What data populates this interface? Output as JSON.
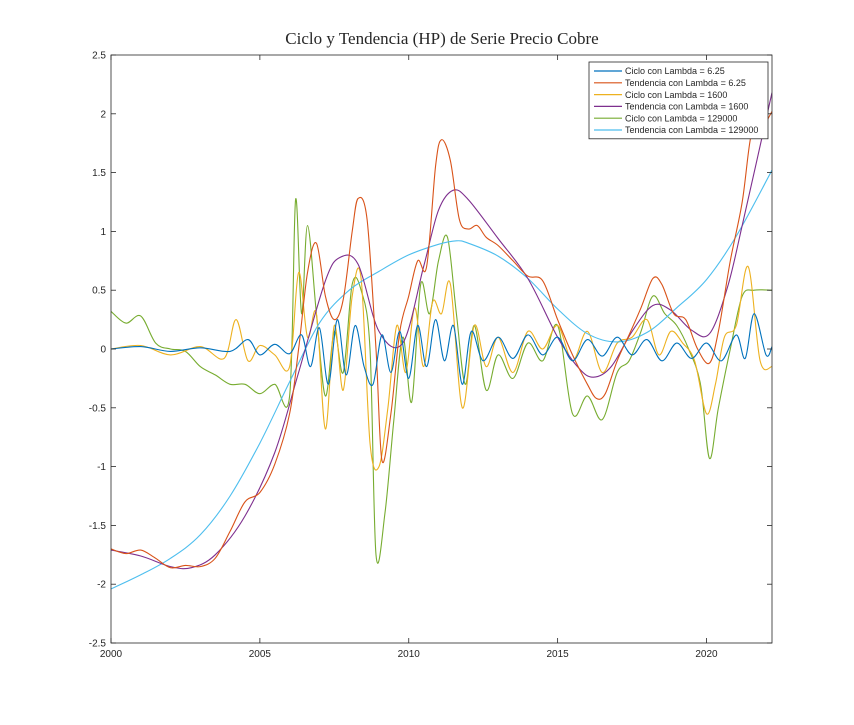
{
  "chart_data": {
    "type": "line",
    "title": "Ciclo y Tendencia (HP) de Serie Precio Cobre",
    "xlabel": "",
    "ylabel": "",
    "xlim": [
      2000,
      2022.2
    ],
    "ylim": [
      -2.5,
      2.5
    ],
    "xticks": [
      "2000",
      "2005",
      "2010",
      "2015",
      "2020"
    ],
    "yticks": [
      "-2.5",
      "-2",
      "-1.5",
      "-1",
      "-0.5",
      "0",
      "0.5",
      "1",
      "1.5",
      "2",
      "2.5"
    ],
    "grid": false,
    "legend_position": "top-right",
    "series": [
      {
        "name": "Tendencia con Lambda = 129000",
        "color": "#4DBEEE",
        "x": [
          2000,
          2001,
          2002,
          2003,
          2004,
          2005,
          2006,
          2007,
          2008,
          2009,
          2010,
          2011,
          2011.6,
          2012,
          2013,
          2014,
          2015,
          2016,
          2017,
          2018,
          2019,
          2020,
          2021,
          2022.2
        ],
        "y": [
          -2.04,
          -1.92,
          -1.78,
          -1.58,
          -1.25,
          -0.8,
          -0.28,
          0.22,
          0.5,
          0.66,
          0.8,
          0.89,
          0.92,
          0.9,
          0.79,
          0.6,
          0.34,
          0.13,
          0.06,
          0.14,
          0.35,
          0.59,
          0.96,
          1.52
        ]
      },
      {
        "name": "Tendencia con Lambda = 1600",
        "color": "#7E2F8E",
        "x": [
          2000,
          2001,
          2002,
          2002.7,
          2003.5,
          2004.5,
          2005.5,
          2006.3,
          2007.2,
          2007.7,
          2008.3,
          2009,
          2009.8,
          2010.5,
          2011,
          2011.5,
          2012,
          2013,
          2014,
          2015,
          2015.7,
          2016.2,
          2016.8,
          2017.5,
          2018.2,
          2018.8,
          2019.5,
          2020.1,
          2020.7,
          2021.2,
          2022.2
        ],
        "y": [
          -1.71,
          -1.76,
          -1.85,
          -1.86,
          -1.75,
          -1.42,
          -0.88,
          -0.2,
          0.58,
          0.78,
          0.72,
          0.15,
          0.05,
          0.7,
          1.18,
          1.35,
          1.27,
          0.94,
          0.6,
          0.1,
          -0.16,
          -0.24,
          -0.15,
          0.15,
          0.37,
          0.33,
          0.16,
          0.13,
          0.52,
          1.05,
          2.18
        ]
      },
      {
        "name": "Tendencia con Lambda = 6.25",
        "color": "#D95319",
        "x": [
          2000,
          2000.5,
          2001,
          2001.5,
          2002,
          2002.5,
          2003,
          2003.5,
          2004,
          2004.5,
          2005,
          2005.5,
          2006,
          2006.3,
          2006.6,
          2006.9,
          2007.2,
          2007.5,
          2007.8,
          2008.1,
          2008.3,
          2008.6,
          2008.9,
          2009.1,
          2009.4,
          2009.7,
          2010,
          2010.3,
          2010.6,
          2010.9,
          2011.1,
          2011.4,
          2011.7,
          2012,
          2012.3,
          2012.6,
          2013,
          2013.5,
          2014,
          2014.5,
          2015,
          2015.5,
          2016,
          2016.3,
          2016.6,
          2017,
          2017.4,
          2017.8,
          2018.2,
          2018.5,
          2018.9,
          2019.3,
          2019.7,
          2020.1,
          2020.4,
          2020.8,
          2021.2,
          2021.5,
          2021.8,
          2022.2
        ],
        "y": [
          -1.7,
          -1.74,
          -1.71,
          -1.78,
          -1.86,
          -1.84,
          -1.85,
          -1.78,
          -1.55,
          -1.3,
          -1.22,
          -0.98,
          -0.55,
          0.0,
          0.65,
          0.9,
          0.45,
          0.25,
          0.42,
          1.0,
          1.28,
          1.1,
          0.0,
          -0.95,
          -0.55,
          0.15,
          0.45,
          0.75,
          0.7,
          1.55,
          1.78,
          1.6,
          1.1,
          1.02,
          1.05,
          0.95,
          0.88,
          0.75,
          0.62,
          0.58,
          0.25,
          -0.05,
          -0.3,
          -0.42,
          -0.38,
          -0.1,
          0.12,
          0.35,
          0.6,
          0.55,
          0.3,
          0.25,
          0.0,
          -0.12,
          0.15,
          0.75,
          1.25,
          1.82,
          1.85,
          2.02
        ]
      }
    ],
    "cycle_series": [
      {
        "name": "Ciclo con Lambda = 6.25",
        "color": "#0072BD",
        "x": [
          2000,
          2001,
          2002,
          2003,
          2004,
          2004.6,
          2005,
          2005.5,
          2006,
          2006.4,
          2006.7,
          2007,
          2007.3,
          2007.6,
          2007.9,
          2008.2,
          2008.5,
          2008.8,
          2009.1,
          2009.4,
          2009.7,
          2010,
          2010.3,
          2010.6,
          2010.9,
          2011.2,
          2011.5,
          2011.8,
          2012.1,
          2012.5,
          2013,
          2013.5,
          2014,
          2014.5,
          2015,
          2015.5,
          2016,
          2016.5,
          2017,
          2017.5,
          2018,
          2018.5,
          2019,
          2019.5,
          2020,
          2020.5,
          2021,
          2021.3,
          2021.6,
          2022,
          2022.2
        ],
        "y": [
          0.0,
          0.02,
          -0.02,
          0.01,
          -0.02,
          0.08,
          -0.05,
          0.04,
          -0.04,
          0.12,
          -0.15,
          0.18,
          -0.3,
          0.25,
          -0.22,
          0.2,
          -0.15,
          -0.3,
          0.12,
          -0.2,
          0.15,
          -0.25,
          0.2,
          -0.15,
          0.25,
          -0.1,
          0.2,
          -0.3,
          0.15,
          -0.1,
          0.1,
          -0.08,
          0.12,
          -0.05,
          0.1,
          -0.1,
          0.08,
          -0.06,
          0.1,
          -0.05,
          0.08,
          -0.1,
          0.05,
          -0.08,
          0.05,
          -0.1,
          0.12,
          -0.08,
          0.3,
          -0.05,
          0.02
        ]
      },
      {
        "name": "Ciclo con Lambda = 1600",
        "color": "#EDB120",
        "x": [
          2000,
          2001,
          2002,
          2003,
          2003.8,
          2004.2,
          2004.6,
          2005,
          2005.5,
          2006,
          2006.3,
          2006.6,
          2006.9,
          2007.2,
          2007.5,
          2007.8,
          2008.1,
          2008.4,
          2008.7,
          2009,
          2009.3,
          2009.6,
          2009.9,
          2010.2,
          2010.5,
          2010.8,
          2011.1,
          2011.4,
          2011.8,
          2012.2,
          2012.6,
          2013,
          2013.5,
          2014,
          2014.5,
          2015,
          2015.5,
          2016,
          2016.5,
          2017,
          2017.5,
          2018,
          2018.4,
          2018.8,
          2019.2,
          2019.6,
          2020,
          2020.3,
          2020.6,
          2021,
          2021.4,
          2021.8,
          2022.2
        ],
        "y": [
          0.0,
          0.03,
          -0.05,
          0.02,
          -0.08,
          0.25,
          -0.1,
          0.03,
          -0.05,
          -0.15,
          0.65,
          0.1,
          0.3,
          -0.68,
          0.2,
          -0.35,
          0.45,
          0.6,
          -0.8,
          -1.0,
          -0.5,
          0.2,
          -0.2,
          0.35,
          -0.15,
          0.4,
          0.3,
          0.55,
          -0.5,
          0.2,
          -0.15,
          0.1,
          -0.2,
          0.15,
          0.0,
          0.2,
          -0.1,
          0.15,
          -0.2,
          0.05,
          0.1,
          0.25,
          -0.05,
          0.15,
          0.05,
          -0.1,
          -0.55,
          -0.3,
          0.1,
          0.2,
          0.7,
          -0.1,
          -0.15
        ]
      },
      {
        "name": "Ciclo con Lambda = 129000",
        "color": "#77AC30",
        "x": [
          2000,
          2000.5,
          2001,
          2001.5,
          2002,
          2002.5,
          2003,
          2003.5,
          2004,
          2004.5,
          2005,
          2005.5,
          2006,
          2006.2,
          2006.4,
          2006.6,
          2006.9,
          2007.2,
          2007.5,
          2007.8,
          2008.1,
          2008.4,
          2008.7,
          2008.9,
          2009.2,
          2009.5,
          2009.8,
          2010.1,
          2010.4,
          2010.7,
          2011,
          2011.3,
          2011.6,
          2011.9,
          2012.2,
          2012.6,
          2013,
          2013.5,
          2014,
          2014.5,
          2015,
          2015.5,
          2016,
          2016.5,
          2017,
          2017.4,
          2017.8,
          2018.2,
          2018.6,
          2019,
          2019.4,
          2019.8,
          2020.1,
          2020.4,
          2020.8,
          2021.2,
          2021.6,
          2022.2
        ],
        "y": [
          0.32,
          0.22,
          0.28,
          0.05,
          0.0,
          -0.02,
          -0.15,
          -0.22,
          -0.3,
          -0.3,
          -0.38,
          -0.3,
          -0.4,
          1.27,
          0.3,
          1.05,
          0.3,
          -0.4,
          0.15,
          -0.2,
          0.55,
          0.5,
          0.0,
          -1.75,
          -1.4,
          -0.6,
          0.1,
          -0.45,
          0.55,
          0.3,
          0.75,
          0.95,
          0.3,
          -0.3,
          0.2,
          -0.35,
          -0.05,
          -0.25,
          0.05,
          -0.1,
          0.2,
          -0.55,
          -0.4,
          -0.6,
          -0.2,
          -0.1,
          0.15,
          0.45,
          0.3,
          0.2,
          0.0,
          -0.3,
          -0.93,
          -0.5,
          0.0,
          0.45,
          0.5,
          0.5
        ]
      }
    ],
    "legend": [
      {
        "label": "Ciclo con Lambda = 6.25",
        "color": "#0072BD"
      },
      {
        "label": "Tendencia con Lambda = 6.25",
        "color": "#D95319"
      },
      {
        "label": "Ciclo con Lambda = 1600",
        "color": "#EDB120"
      },
      {
        "label": "Tendencia con Lambda = 1600",
        "color": "#7E2F8E"
      },
      {
        "label": "Ciclo con Lambda = 129000",
        "color": "#77AC30"
      },
      {
        "label": "Tendencia con Lambda = 129000",
        "color": "#4DBEEE"
      }
    ]
  }
}
